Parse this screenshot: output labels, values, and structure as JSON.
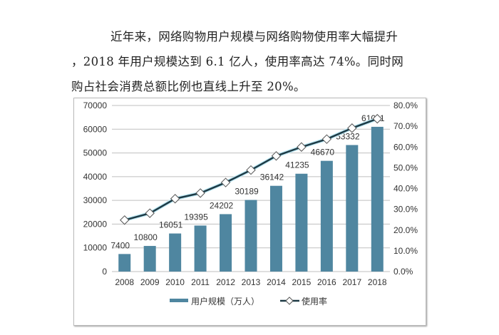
{
  "document": {
    "paragraph_lines": [
      "近年来，网络购物用户规模与网络购物使用率大幅提升",
      "，2018 年用户规模达到 6.1 亿人，使用率高达 74%。同时网",
      "购占社会消费总额比例也直线上升至 20%。"
    ]
  },
  "chart_data": {
    "type": "bar+line",
    "categories": [
      "2008",
      "2009",
      "2010",
      "2011",
      "2012",
      "2013",
      "2014",
      "2015",
      "2016",
      "2017",
      "2018"
    ],
    "series": [
      {
        "name": "用户规模（万人）",
        "type": "bar",
        "axis": "left",
        "color": "#4f86a0",
        "values": [
          7400,
          10800,
          16051,
          19395,
          24202,
          30189,
          36142,
          41235,
          46670,
          53332,
          61011
        ],
        "labels": [
          "7400",
          "10800",
          "16051",
          "19395",
          "24202",
          "30189",
          "36142",
          "41235",
          "46670",
          "53332",
          "61011"
        ]
      },
      {
        "name": "使用率",
        "type": "line",
        "axis": "right",
        "color": "#1d3a45",
        "marker": "diamond-hollow",
        "values": [
          24.8,
          28.1,
          35.1,
          37.8,
          42.9,
          48.9,
          55.7,
          60.0,
          63.8,
          69.1,
          73.6
        ]
      }
    ],
    "left_axis": {
      "ylim": [
        0,
        70000
      ],
      "ticks": [
        "0",
        "10000",
        "20000",
        "30000",
        "40000",
        "50000",
        "60000",
        "70000"
      ]
    },
    "right_axis": {
      "ylim": [
        0,
        80
      ],
      "ticks": [
        "0.0%",
        "10.0%",
        "20.0%",
        "30.0%",
        "40.0%",
        "50.0%",
        "60.0%",
        "70.0%",
        "80.0%"
      ]
    },
    "grid": true,
    "legend_position": "bottom"
  }
}
